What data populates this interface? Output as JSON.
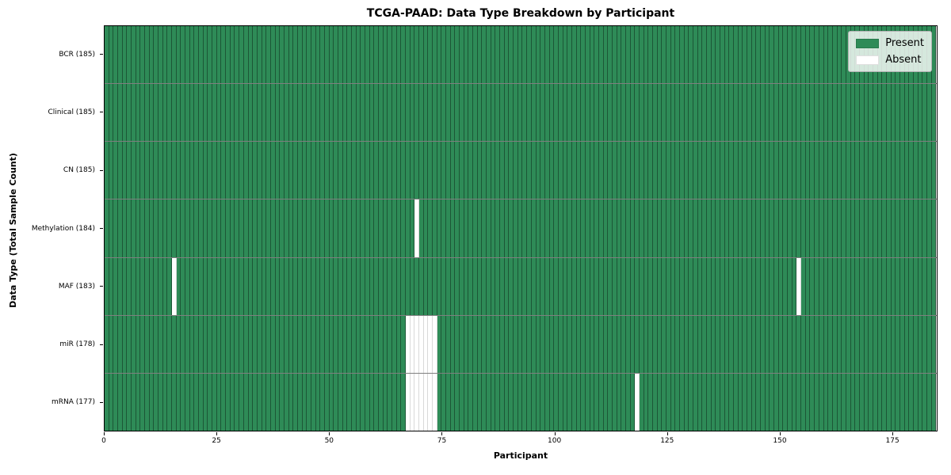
{
  "chart_data": {
    "type": "heatmap",
    "title": "TCGA-PAAD: Data Type Breakdown by Participant",
    "xlabel": "Participant",
    "ylabel": "Data Type (Total Sample Count)",
    "x_ticks": [
      0,
      25,
      50,
      75,
      100,
      125,
      150,
      175
    ],
    "xlim": [
      0,
      185
    ],
    "n_participants": 185,
    "grid": false,
    "legend_position": "upper right",
    "colors": {
      "present": "#2e8b57",
      "absent": "#ffffff"
    },
    "legend": [
      {
        "label": "Present",
        "color": "#2e8b57"
      },
      {
        "label": "Absent",
        "color": "#ffffff"
      }
    ],
    "categories": [
      "BCR (185)",
      "Clinical (185)",
      "CN (185)",
      "Methylation (184)",
      "MAF (183)",
      "miR (178)",
      "mRNA (177)"
    ],
    "rows": [
      {
        "label": "BCR (185)",
        "total_present": 185,
        "absent_participants": []
      },
      {
        "label": "Clinical (185)",
        "total_present": 185,
        "absent_participants": []
      },
      {
        "label": "CN (185)",
        "total_present": 185,
        "absent_participants": []
      },
      {
        "label": "Methylation (184)",
        "total_present": 184,
        "absent_participants": [
          69
        ]
      },
      {
        "label": "MAF (183)",
        "total_present": 183,
        "absent_participants": [
          15,
          154
        ]
      },
      {
        "label": "miR (178)",
        "total_present": 178,
        "absent_participants": [
          67,
          68,
          69,
          70,
          71,
          72,
          73
        ]
      },
      {
        "label": "mRNA (177)",
        "total_present": 177,
        "absent_participants": [
          67,
          68,
          69,
          70,
          71,
          72,
          73,
          118
        ]
      }
    ]
  }
}
